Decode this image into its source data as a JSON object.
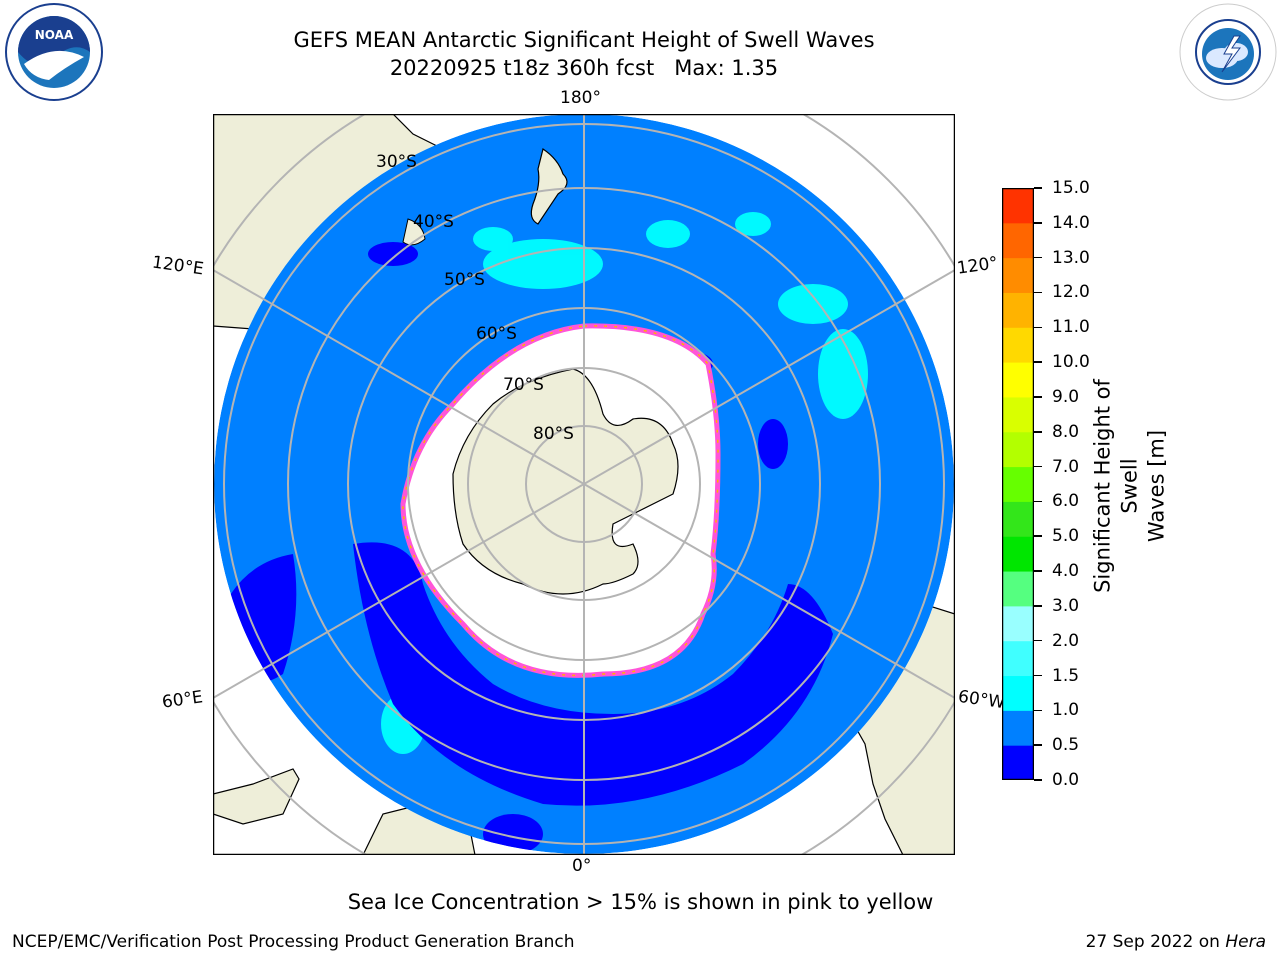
{
  "title": {
    "line1": "GEFS MEAN Antarctic Significant Height of Swell Waves",
    "line2": "20220925 t18z 360h fcst   Max: 1.35"
  },
  "logos": {
    "left": "noaa-logo",
    "right": "national-weather-service-logo"
  },
  "map": {
    "projection": "south-polar-stereographic",
    "longitude_labels": {
      "top": "180°",
      "bottom": "0°",
      "left_upper": "120°E",
      "left_lower": "60°E",
      "right_upper": "120°",
      "right_lower": "60°W"
    },
    "latitude_labels": [
      "30°S",
      "40°S",
      "50°S",
      "60°S",
      "70°S",
      "80°S"
    ],
    "colors": {
      "land": "#eeeed9",
      "ocean_0_5_1_0": "#0080ff",
      "ocean_0_0_5": "#0000ff",
      "ocean_1_0_1_5": "#00ffff",
      "sea_ice": "#ffffff",
      "sea_ice_edge": "#ff55d8",
      "grid": "#b4b4b4"
    }
  },
  "colorbar": {
    "label_line1": "Significant Height of Swell",
    "label_line2": "Waves [m]",
    "ticks": [
      "0.0",
      "0.5",
      "1.0",
      "1.5",
      "2.0",
      "3.0",
      "4.0",
      "5.0",
      "6.0",
      "7.0",
      "8.0",
      "9.0",
      "10.0",
      "11.0",
      "12.0",
      "13.0",
      "14.0",
      "15.0"
    ],
    "colors": [
      "#0000ff",
      "#0080ff",
      "#00ffff",
      "#40ffff",
      "#99ffff",
      "#55ff80",
      "#00e600",
      "#33e61a",
      "#66ff00",
      "#b3ff00",
      "#d9ff00",
      "#ffff00",
      "#ffd900",
      "#ffb300",
      "#ff8c00",
      "#ff6600",
      "#ff3300",
      "#ff0000"
    ]
  },
  "footnote": "Sea Ice Concentration > 15% is shown in pink to yellow",
  "credit_left": "NCEP/EMC/Verification Post Processing Product Generation Branch",
  "credit_right_date": "27 Sep 2022 on",
  "credit_right_machine": "Hera"
}
